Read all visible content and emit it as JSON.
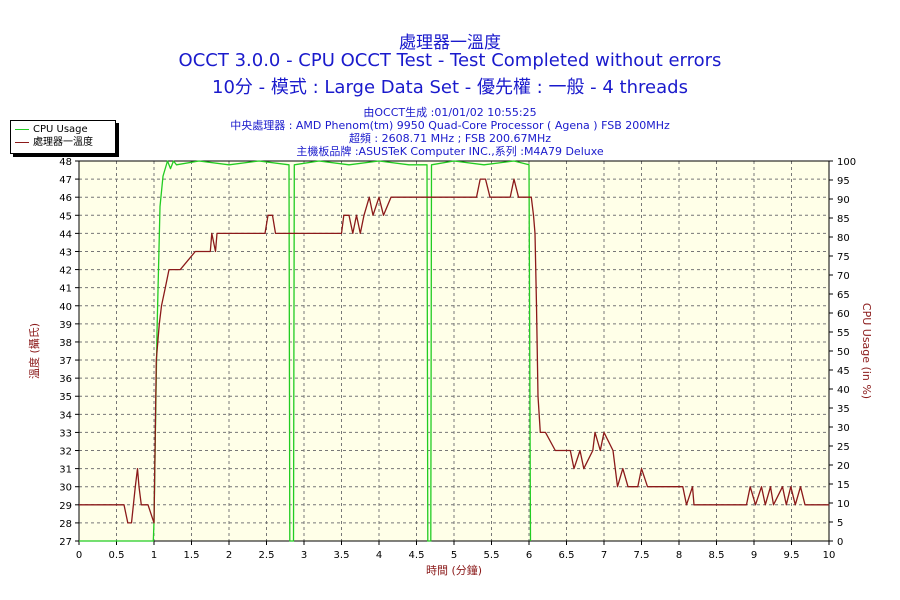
{
  "title": {
    "line1": "處理器一溫度",
    "line2": "OCCT 3.0.0 - CPU OCCT Test - Test Completed without errors",
    "line3": "10分 - 模式 : Large Data Set - 優先權 : 一般 - 4 threads"
  },
  "info": {
    "line1": "由OCCT生成 :01/01/02 10:55:25",
    "line2": "中央處理器 : AMD Phenom(tm) 9950 Quad-Core Processor ( Agena ) FSB 200MHz",
    "line3": "超頻 : 2608.71 MHz ; FSB 200.67MHz",
    "line4": "主機板品牌 :ASUSTeK Computer INC.,系列 :M4A79 Deluxe"
  },
  "colors": {
    "usage": "#22cc22",
    "temp": "#8b1a1a",
    "text": "#1a1acc",
    "plot_bg": "#ffffe8",
    "grid": "#777777",
    "axis_label": "#8b1a1a"
  },
  "chart_data": {
    "type": "line",
    "xlabel": "時間 (分鐘)",
    "ylabel_left": "溫度 (攝氏)",
    "ylabel_right": "CPU Usage (in %)",
    "xlim": [
      0,
      10
    ],
    "ylim_left": [
      27,
      48
    ],
    "ylim_right": [
      0,
      100
    ],
    "x_ticks": [
      "0",
      "0.5",
      "1",
      "1.5",
      "2",
      "2.5",
      "3",
      "3.5",
      "4",
      "4.5",
      "5",
      "5.5",
      "6",
      "6.5",
      "7",
      "7.5",
      "8",
      "8.5",
      "9",
      "9.5",
      "10"
    ],
    "y_ticks_left": [
      "27",
      "28",
      "29",
      "30",
      "31",
      "32",
      "33",
      "34",
      "35",
      "36",
      "37",
      "38",
      "39",
      "40",
      "41",
      "42",
      "43",
      "44",
      "45",
      "46",
      "47",
      "48"
    ],
    "y_ticks_right": [
      "0",
      "5",
      "10",
      "15",
      "20",
      "25",
      "30",
      "35",
      "40",
      "45",
      "50",
      "55",
      "60",
      "65",
      "70",
      "75",
      "80",
      "85",
      "90",
      "95",
      "100"
    ],
    "grid": true,
    "legend_position": "top-left",
    "series": [
      {
        "name": "CPU Usage",
        "axis": "right",
        "x": [
          0,
          0.99,
          1.0,
          1.04,
          1.08,
          1.12,
          1.18,
          1.22,
          1.26,
          1.3,
          1.6,
          2.0,
          2.4,
          2.8,
          2.81,
          2.86,
          2.87,
          3.2,
          3.6,
          4.0,
          4.4,
          4.64,
          4.65,
          4.69,
          4.7,
          5.0,
          5.4,
          5.8,
          6.0,
          6.02
        ],
        "y": [
          0,
          0,
          5,
          55,
          88,
          96,
          100,
          98,
          100,
          99,
          100,
          99,
          100,
          99,
          0,
          0,
          99,
          100,
          99,
          100,
          99,
          99,
          0,
          0,
          99,
          100,
          99,
          100,
          99,
          0
        ]
      },
      {
        "name": "處理器一溫度",
        "axis": "left",
        "x": [
          0,
          0.6,
          0.65,
          0.7,
          0.75,
          0.78,
          0.8,
          0.83,
          0.88,
          0.92,
          1.0,
          1.03,
          1.07,
          1.1,
          1.15,
          1.2,
          1.26,
          1.35,
          1.55,
          1.65,
          1.75,
          1.77,
          1.82,
          1.84,
          1.9,
          2.48,
          2.52,
          2.58,
          2.62,
          3.5,
          3.53,
          3.6,
          3.65,
          3.7,
          3.75,
          3.8,
          3.87,
          3.92,
          4.0,
          4.06,
          4.16,
          4.25,
          5.3,
          5.35,
          5.42,
          5.48,
          5.75,
          5.8,
          5.86,
          5.92,
          5.99,
          6.03,
          6.06,
          6.08,
          6.1,
          6.12,
          6.15,
          6.22,
          6.35,
          6.55,
          6.6,
          6.68,
          6.73,
          6.85,
          6.88,
          6.95,
          7.0,
          7.12,
          7.18,
          7.25,
          7.32,
          7.45,
          7.5,
          7.58,
          8.05,
          8.1,
          8.18,
          8.2,
          8.9,
          8.95,
          9.02,
          9.1,
          9.15,
          9.22,
          9.26,
          9.38,
          9.43,
          9.49,
          9.55,
          9.62,
          9.68,
          9.7,
          9.8,
          10.0
        ],
        "y": [
          29,
          29,
          28,
          28,
          30,
          31,
          30,
          29,
          29,
          29,
          28,
          37,
          39,
          40,
          41,
          42,
          42,
          42,
          43,
          43,
          43,
          44,
          43,
          44,
          44,
          44,
          45,
          45,
          44,
          44,
          45,
          45,
          44,
          45,
          44,
          45,
          46,
          45,
          46,
          45,
          46,
          46,
          46,
          47,
          47,
          46,
          46,
          47,
          46,
          46,
          46,
          46,
          45,
          44,
          40,
          35,
          33,
          33,
          32,
          32,
          31,
          32,
          31,
          32,
          33,
          32,
          33,
          32,
          30,
          31,
          30,
          30,
          31,
          30,
          30,
          29,
          30,
          29,
          29,
          30,
          29,
          30,
          29,
          30,
          29,
          30,
          29,
          30,
          29,
          30,
          29,
          29,
          29,
          29
        ]
      }
    ]
  }
}
